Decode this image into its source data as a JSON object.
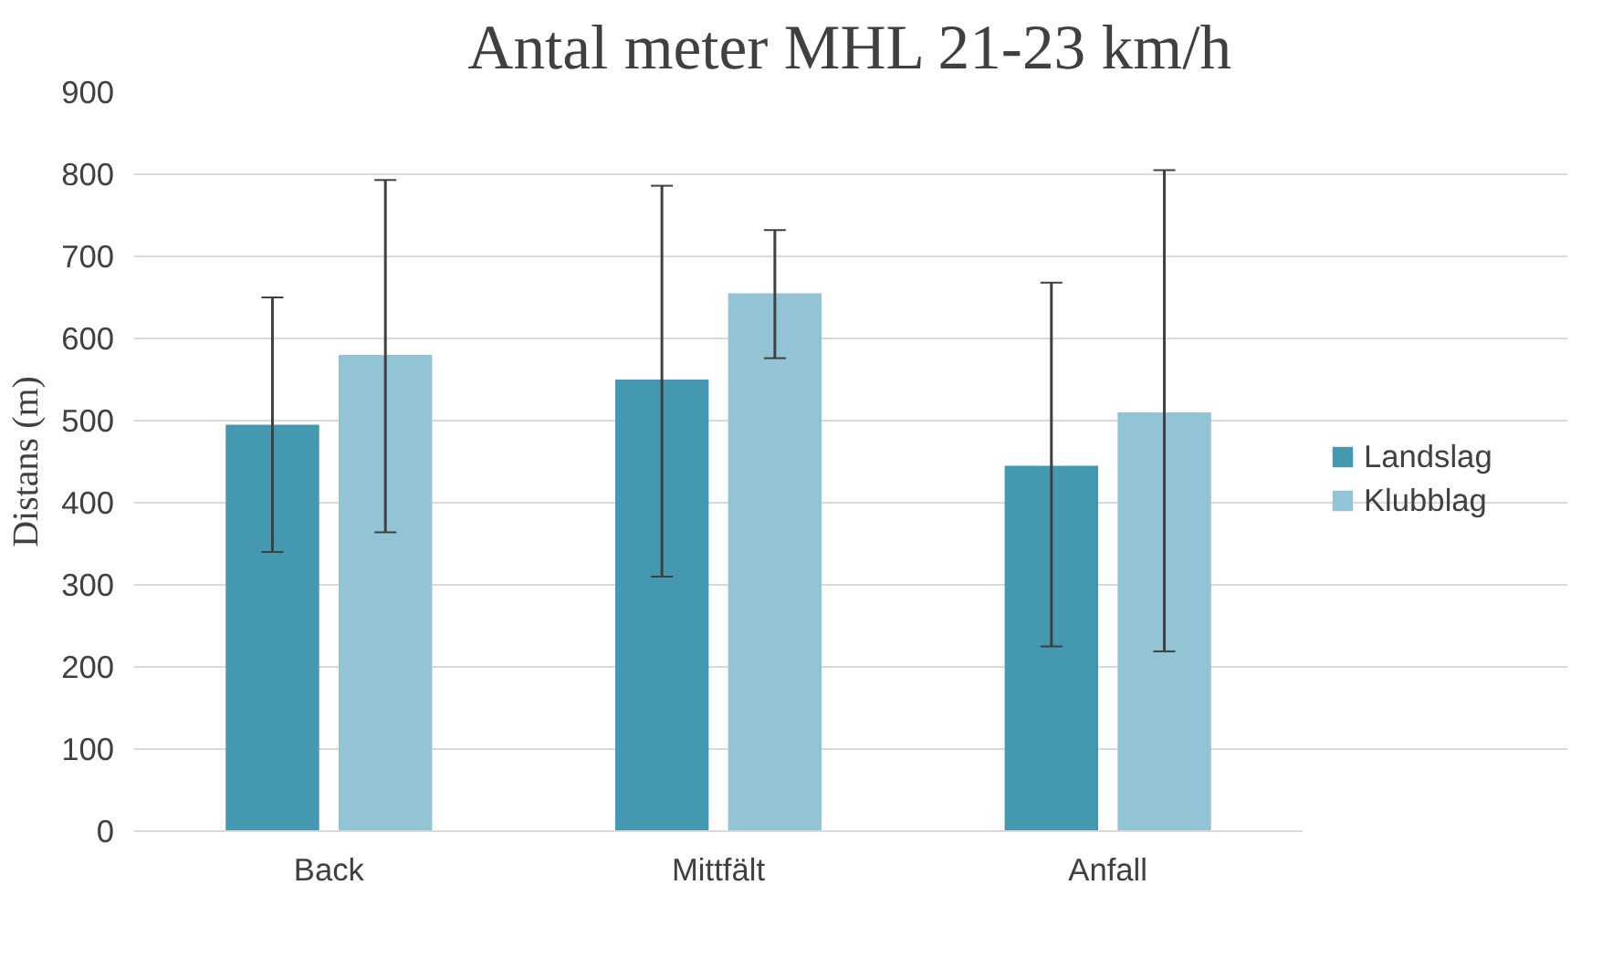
{
  "chart_data": {
    "type": "bar",
    "title": "Antal meter MHL 21-23 km/h",
    "ylabel": "Distans (m)",
    "categories": [
      "Back",
      "Mittfält",
      "Anfall"
    ],
    "series": [
      {
        "name": "Landslag",
        "color": "#4499b0",
        "values": [
          495,
          550,
          445
        ],
        "errors": [
          [
            340,
            650
          ],
          [
            310,
            786
          ],
          [
            225,
            668
          ]
        ]
      },
      {
        "name": "Klubblag",
        "color": "#93c4d6",
        "values": [
          580,
          655,
          510
        ],
        "errors": [
          [
            364,
            793
          ],
          [
            576,
            732
          ],
          [
            219,
            805
          ]
        ]
      }
    ],
    "ylim": [
      0,
      900
    ],
    "yticks": [
      0,
      100,
      200,
      300,
      400,
      500,
      600,
      700,
      800,
      900
    ],
    "grid": "y",
    "legend": "right"
  }
}
